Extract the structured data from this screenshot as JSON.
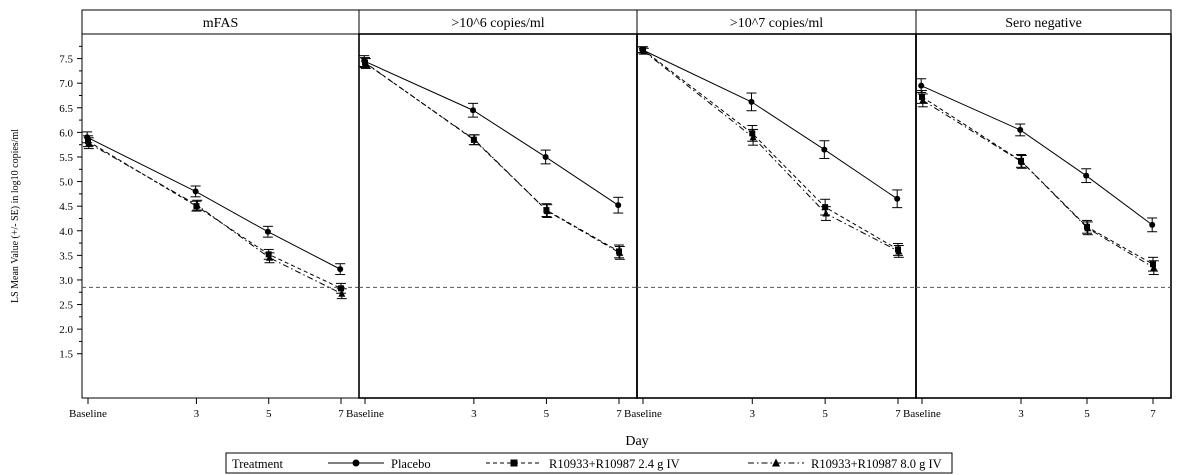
{
  "chart_data": {
    "type": "line",
    "panels": [
      "mFAS",
      ">10^6 copies/ml",
      ">10^7 copies/ml",
      "Sero negative"
    ],
    "x_tick_labels": [
      "Baseline",
      "3",
      "5",
      "7"
    ],
    "x": [
      0,
      3,
      5,
      7
    ],
    "xlabel": "Day",
    "ylabel": "LS Mean Value (+/- SE) in log10 copies/ml",
    "y_ticks": [
      "1.5",
      "2.0",
      "2.5",
      "3.0",
      "3.5",
      "4.0",
      "4.5",
      "5.0",
      "5.5",
      "6.0",
      "6.5",
      "7.0",
      "7.5"
    ],
    "ylim": [
      0.6,
      8.0
    ],
    "reference_line_y": 2.85,
    "legend_title": "Treatment",
    "legend_position": "bottom",
    "series": [
      {
        "name": "Placebo",
        "marker": "circle",
        "line_style": "solid",
        "values": [
          [
            5.9,
            4.8,
            3.98,
            3.22
          ],
          [
            7.45,
            6.45,
            5.5,
            4.52
          ],
          [
            7.68,
            6.62,
            5.65,
            4.65
          ],
          [
            6.95,
            6.05,
            5.12,
            4.12
          ]
        ],
        "se": [
          [
            0.11,
            0.11,
            0.11,
            0.11
          ],
          [
            0.11,
            0.14,
            0.14,
            0.16
          ],
          [
            0.06,
            0.18,
            0.18,
            0.18
          ],
          [
            0.14,
            0.12,
            0.14,
            0.14
          ]
        ]
      },
      {
        "name": "R10933+R10987 2.4 g IV",
        "marker": "square",
        "line_style": "dashed",
        "values": [
          [
            5.82,
            4.5,
            3.52,
            2.83
          ],
          [
            7.42,
            5.85,
            4.42,
            3.58
          ],
          [
            7.68,
            5.98,
            4.48,
            3.62
          ],
          [
            6.72,
            5.42,
            4.08,
            3.32
          ]
        ],
        "se": [
          [
            0.11,
            0.1,
            0.1,
            0.1
          ],
          [
            0.1,
            0.1,
            0.13,
            0.13
          ],
          [
            0.06,
            0.16,
            0.16,
            0.12
          ],
          [
            0.13,
            0.13,
            0.13,
            0.14
          ]
        ]
      },
      {
        "name": "R10933+R10987 8.0 g IV",
        "marker": "triangle",
        "line_style": "dash-dot",
        "values": [
          [
            5.78,
            4.52,
            3.45,
            2.72
          ],
          [
            7.4,
            5.85,
            4.4,
            3.55
          ],
          [
            7.65,
            5.9,
            4.35,
            3.58
          ],
          [
            6.65,
            5.4,
            4.05,
            3.25
          ]
        ],
        "se": [
          [
            0.11,
            0.1,
            0.1,
            0.1
          ],
          [
            0.1,
            0.1,
            0.13,
            0.13
          ],
          [
            0.06,
            0.16,
            0.14,
            0.12
          ],
          [
            0.13,
            0.13,
            0.13,
            0.14
          ]
        ]
      }
    ]
  }
}
